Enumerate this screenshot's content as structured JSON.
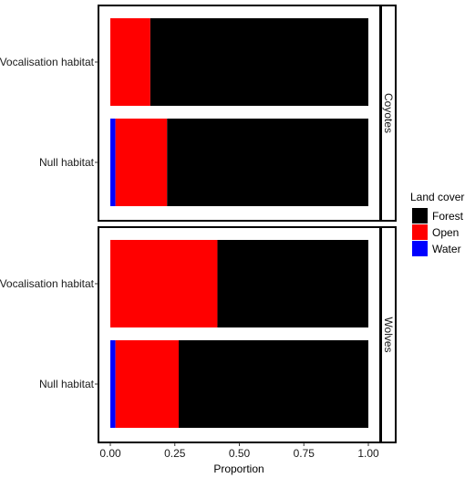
{
  "chart_data": {
    "type": "bar",
    "orientation": "horizontal",
    "stacked": true,
    "xlabel": "Proportion",
    "xlim": [
      0,
      1
    ],
    "xticks": [
      "0.00",
      "0.25",
      "0.50",
      "0.75",
      "1.00"
    ],
    "categories": [
      "Vocalisation habitat",
      "Null habitat"
    ],
    "legend": {
      "title": "Land cover",
      "position": "right",
      "entries": [
        {
          "name": "Forest",
          "color": "#000000"
        },
        {
          "name": "Open",
          "color": "#ff0000"
        },
        {
          "name": "Water",
          "color": "#0000ff"
        }
      ]
    },
    "facets": [
      {
        "label": "Coyotes",
        "bars": [
          {
            "category": "Vocalisation habitat",
            "segments": [
              {
                "name": "Water",
                "value": 0.0
              },
              {
                "name": "Open",
                "value": 0.155
              },
              {
                "name": "Forest",
                "value": 0.845
              }
            ]
          },
          {
            "category": "Null habitat",
            "segments": [
              {
                "name": "Water",
                "value": 0.02
              },
              {
                "name": "Open",
                "value": 0.2
              },
              {
                "name": "Forest",
                "value": 0.78
              }
            ]
          }
        ]
      },
      {
        "label": "Wolves",
        "bars": [
          {
            "category": "Vocalisation habitat",
            "segments": [
              {
                "name": "Water",
                "value": 0.0
              },
              {
                "name": "Open",
                "value": 0.415
              },
              {
                "name": "Forest",
                "value": 0.585
              }
            ]
          },
          {
            "category": "Null habitat",
            "segments": [
              {
                "name": "Water",
                "value": 0.02
              },
              {
                "name": "Open",
                "value": 0.245
              },
              {
                "name": "Forest",
                "value": 0.735
              }
            ]
          }
        ]
      }
    ]
  }
}
